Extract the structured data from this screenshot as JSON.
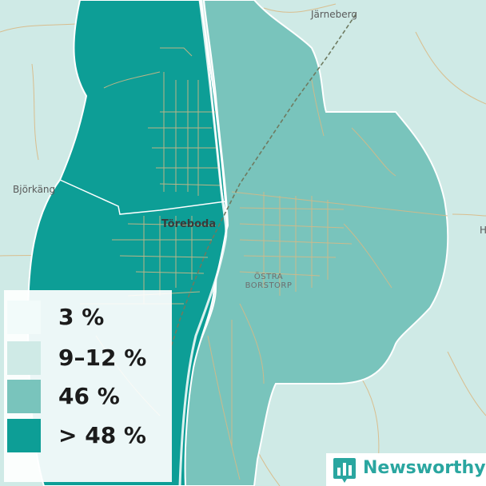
{
  "map": {
    "places": {
      "jarneberg": "Järneberg",
      "bjorkang": "Björkäng",
      "toreboda": "Töreboda",
      "ostra_line1": "ÖSTRA",
      "ostra_line2": "BORSTORP",
      "edge": "H"
    },
    "colors": {
      "background": "#cfeae6",
      "region_west": "#0d9e96",
      "region_east": "#79c4bc",
      "roads": "#d9b985",
      "railway": "#6e7a60"
    }
  },
  "legend": {
    "items": [
      {
        "label": "3 %",
        "color": "#f2fbfa"
      },
      {
        "label": "9–12 %",
        "color": "#cfeae6"
      },
      {
        "label": "46 %",
        "color": "#79c4bc"
      },
      {
        "label": "> 48 %",
        "color": "#0d9e96"
      }
    ]
  },
  "brand": {
    "name": "Newsworthy",
    "icon": "bar-chart-icon"
  }
}
